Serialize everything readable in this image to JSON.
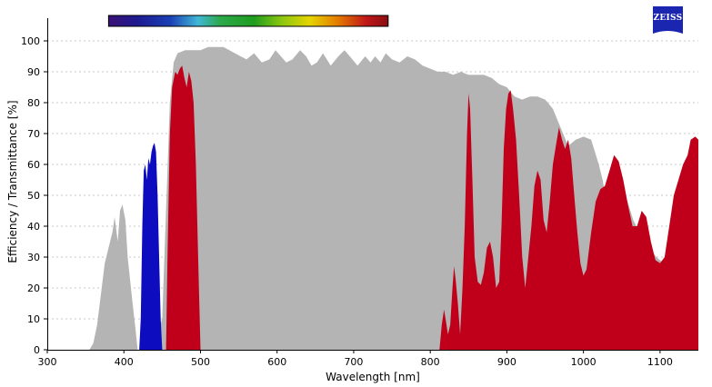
{
  "chart_data": {
    "type": "area",
    "xlabel": "Wavelength [nm]",
    "ylabel": "Efficiency / Transmittance [%]",
    "xlim": [
      300,
      1150
    ],
    "ylim": [
      0,
      105
    ],
    "x_ticks": [
      300,
      400,
      500,
      600,
      700,
      800,
      900,
      1000,
      1100
    ],
    "y_ticks": [
      0,
      10,
      20,
      30,
      40,
      50,
      60,
      70,
      80,
      90,
      100
    ],
    "grid": "horizontal dotted",
    "colorbar_nm": [
      380,
      745
    ],
    "series": [
      {
        "color": "#b4b4b4",
        "points": [
          [
            355,
            0
          ],
          [
            360,
            2
          ],
          [
            365,
            8
          ],
          [
            370,
            18
          ],
          [
            375,
            28
          ],
          [
            380,
            33
          ],
          [
            385,
            38
          ],
          [
            388,
            43
          ],
          [
            392,
            35
          ],
          [
            395,
            45
          ],
          [
            398,
            47
          ],
          [
            402,
            42
          ],
          [
            405,
            30
          ],
          [
            410,
            18
          ],
          [
            415,
            7
          ],
          [
            418,
            0
          ],
          [
            430,
            0
          ],
          [
            440,
            2
          ],
          [
            450,
            10
          ],
          [
            455,
            45
          ],
          [
            460,
            80
          ],
          [
            465,
            93
          ],
          [
            470,
            96
          ],
          [
            480,
            97
          ],
          [
            500,
            97
          ],
          [
            510,
            98
          ],
          [
            530,
            98
          ],
          [
            545,
            96
          ],
          [
            560,
            94
          ],
          [
            570,
            96
          ],
          [
            580,
            93
          ],
          [
            590,
            94
          ],
          [
            598,
            97
          ],
          [
            605,
            95
          ],
          [
            612,
            93
          ],
          [
            620,
            94
          ],
          [
            630,
            97
          ],
          [
            638,
            95
          ],
          [
            645,
            92
          ],
          [
            652,
            93
          ],
          [
            660,
            96
          ],
          [
            670,
            92
          ],
          [
            680,
            95
          ],
          [
            688,
            97
          ],
          [
            695,
            95
          ],
          [
            705,
            92
          ],
          [
            715,
            95
          ],
          [
            722,
            93
          ],
          [
            728,
            95
          ],
          [
            735,
            93
          ],
          [
            742,
            96
          ],
          [
            750,
            94
          ],
          [
            760,
            93
          ],
          [
            770,
            95
          ],
          [
            780,
            94
          ],
          [
            790,
            92
          ],
          [
            800,
            91
          ],
          [
            810,
            90
          ],
          [
            820,
            90
          ],
          [
            830,
            89
          ],
          [
            840,
            90
          ],
          [
            850,
            89
          ],
          [
            860,
            89
          ],
          [
            870,
            89
          ],
          [
            880,
            88
          ],
          [
            890,
            86
          ],
          [
            900,
            85
          ],
          [
            910,
            82
          ],
          [
            920,
            81
          ],
          [
            930,
            82
          ],
          [
            940,
            82
          ],
          [
            950,
            81
          ],
          [
            960,
            78
          ],
          [
            970,
            72
          ],
          [
            980,
            66
          ],
          [
            990,
            68
          ],
          [
            1000,
            69
          ],
          [
            1010,
            68
          ],
          [
            1020,
            60
          ],
          [
            1025,
            55
          ],
          [
            1030,
            48
          ],
          [
            1040,
            52
          ],
          [
            1050,
            47
          ],
          [
            1055,
            50
          ],
          [
            1065,
            42
          ],
          [
            1080,
            35
          ],
          [
            1095,
            30
          ],
          [
            1105,
            28
          ],
          [
            1110,
            30
          ],
          [
            1115,
            33
          ],
          [
            1120,
            45
          ],
          [
            1130,
            57
          ],
          [
            1140,
            65
          ],
          [
            1150,
            68
          ]
        ]
      },
      {
        "color": "#0d0dbf",
        "points": [
          [
            420,
            0
          ],
          [
            422,
            10
          ],
          [
            424,
            40
          ],
          [
            426,
            58
          ],
          [
            428,
            60
          ],
          [
            430,
            55
          ],
          [
            432,
            62
          ],
          [
            434,
            60
          ],
          [
            436,
            64
          ],
          [
            438,
            66
          ],
          [
            440,
            67
          ],
          [
            442,
            64
          ],
          [
            444,
            50
          ],
          [
            446,
            30
          ],
          [
            448,
            10
          ],
          [
            450,
            0
          ]
        ]
      },
      {
        "color": "#c0001a",
        "points": [
          [
            455,
            0
          ],
          [
            457,
            30
          ],
          [
            460,
            70
          ],
          [
            463,
            85
          ],
          [
            467,
            90
          ],
          [
            470,
            89
          ],
          [
            473,
            91
          ],
          [
            476,
            92
          ],
          [
            479,
            88
          ],
          [
            482,
            85
          ],
          [
            485,
            90
          ],
          [
            488,
            87
          ],
          [
            491,
            80
          ],
          [
            494,
            60
          ],
          [
            497,
            30
          ],
          [
            500,
            0
          ]
        ]
      },
      {
        "color": "#c0001a",
        "points": [
          [
            812,
            0
          ],
          [
            815,
            8
          ],
          [
            818,
            13
          ],
          [
            820,
            10
          ],
          [
            823,
            5
          ],
          [
            826,
            8
          ],
          [
            829,
            20
          ],
          [
            831,
            27
          ],
          [
            833,
            23
          ],
          [
            836,
            15
          ],
          [
            839,
            5
          ],
          [
            842,
            20
          ],
          [
            845,
            40
          ],
          [
            848,
            70
          ],
          [
            850,
            83
          ],
          [
            852,
            78
          ],
          [
            855,
            55
          ],
          [
            858,
            30
          ],
          [
            862,
            22
          ],
          [
            866,
            21
          ],
          [
            870,
            25
          ],
          [
            874,
            33
          ],
          [
            878,
            35
          ],
          [
            882,
            30
          ],
          [
            886,
            20
          ],
          [
            890,
            22
          ],
          [
            893,
            40
          ],
          [
            896,
            65
          ],
          [
            899,
            78
          ],
          [
            902,
            83
          ],
          [
            905,
            84
          ],
          [
            908,
            78
          ],
          [
            912,
            68
          ],
          [
            916,
            50
          ],
          [
            920,
            30
          ],
          [
            924,
            20
          ],
          [
            928,
            30
          ],
          [
            932,
            40
          ],
          [
            936,
            53
          ],
          [
            940,
            58
          ],
          [
            944,
            55
          ],
          [
            948,
            42
          ],
          [
            952,
            38
          ],
          [
            956,
            48
          ],
          [
            960,
            60
          ],
          [
            964,
            66
          ],
          [
            968,
            72
          ],
          [
            972,
            68
          ],
          [
            976,
            65
          ],
          [
            980,
            68
          ],
          [
            984,
            62
          ],
          [
            988,
            50
          ],
          [
            992,
            38
          ],
          [
            996,
            28
          ],
          [
            1000,
            24
          ],
          [
            1004,
            26
          ],
          [
            1010,
            38
          ],
          [
            1016,
            48
          ],
          [
            1022,
            52
          ],
          [
            1028,
            53
          ],
          [
            1034,
            58
          ],
          [
            1040,
            63
          ],
          [
            1046,
            61
          ],
          [
            1052,
            55
          ],
          [
            1058,
            47
          ],
          [
            1064,
            40
          ],
          [
            1070,
            40
          ],
          [
            1076,
            45
          ],
          [
            1082,
            43
          ],
          [
            1088,
            35
          ],
          [
            1094,
            29
          ],
          [
            1100,
            28
          ],
          [
            1106,
            30
          ],
          [
            1112,
            40
          ],
          [
            1118,
            50
          ],
          [
            1124,
            55
          ],
          [
            1130,
            60
          ],
          [
            1136,
            63
          ],
          [
            1140,
            68
          ],
          [
            1146,
            69
          ],
          [
            1150,
            68
          ],
          [
            1150,
            0
          ]
        ]
      }
    ]
  },
  "logo": {
    "text": "ZEISS",
    "color": "#1a25b0"
  }
}
